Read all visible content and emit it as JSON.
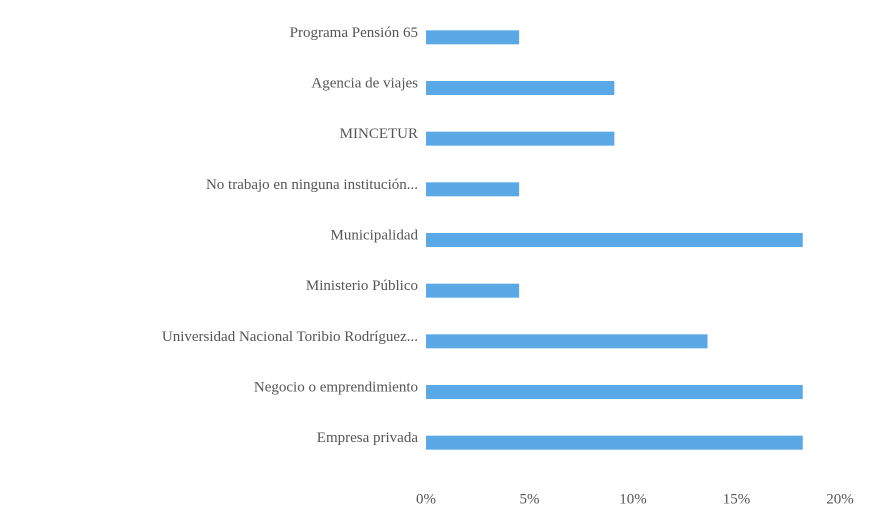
{
  "chart_data": {
    "type": "barh",
    "categories": [
      "Programa Pensión 65",
      "Agencia de viajes",
      "MINCETUR",
      "No trabajo en ninguna institución...",
      "Municipalidad",
      "Ministerio Público",
      "Universidad Nacional Toribio Rodríguez...",
      "Negocio o emprendimiento",
      "Empresa privada"
    ],
    "values": [
      4.5,
      9.1,
      9.1,
      4.5,
      18.2,
      4.5,
      13.6,
      18.2,
      18.2
    ],
    "color": "#5aa9e6",
    "xlim": [
      0,
      20
    ],
    "xticks": [
      {
        "value": 0,
        "label": "0%"
      },
      {
        "value": 5,
        "label": "5%"
      },
      {
        "value": 10,
        "label": "10%"
      },
      {
        "value": 15,
        "label": "15%"
      },
      {
        "value": 20,
        "label": "20%"
      }
    ],
    "grid": false
  }
}
